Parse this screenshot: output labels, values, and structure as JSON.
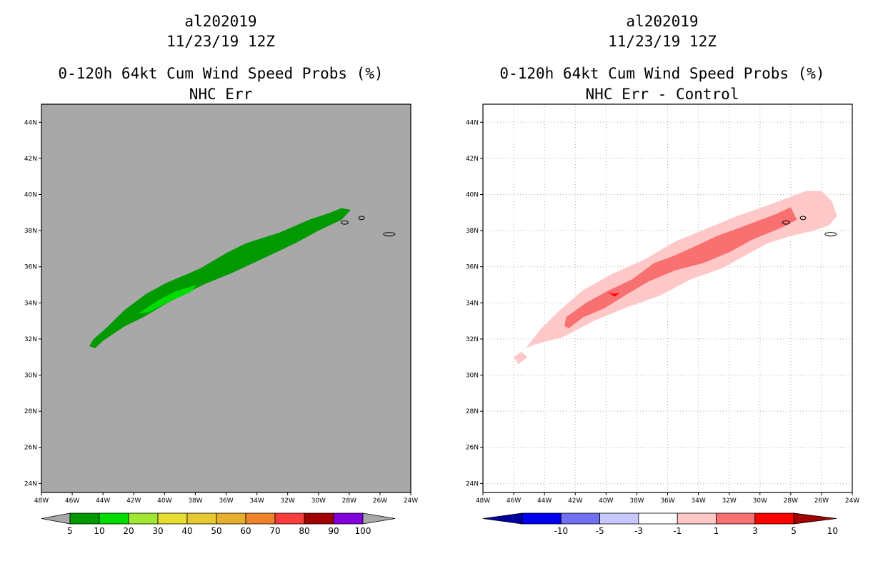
{
  "chart_data": [
    {
      "type": "map-contour",
      "storm_id": "al202019",
      "datetime": "11/23/19 12Z",
      "title": "0-120h 64kt Cum Wind Speed Probs (%)",
      "subtitle": "NHC Err",
      "lon_labels": [
        "48W",
        "46W",
        "44W",
        "42W",
        "40W",
        "38W",
        "36W",
        "34W",
        "32W",
        "30W",
        "28W",
        "26W",
        "24W"
      ],
      "lat_labels": [
        "44N",
        "42N",
        "40N",
        "38N",
        "36N",
        "34N",
        "32N",
        "30N",
        "28N",
        "26N",
        "24N"
      ],
      "lon_range": [
        -48,
        -24
      ],
      "lat_range": [
        23.5,
        45
      ],
      "gridlines": false,
      "colorbar": {
        "labels": [
          "5",
          "10",
          "20",
          "30",
          "40",
          "50",
          "60",
          "70",
          "80",
          "90",
          "100"
        ],
        "colors": [
          "#009a00",
          "#00dc00",
          "#a0e632",
          "#e6dc32",
          "#e6c832",
          "#e6af2d",
          "#f08228",
          "#fa3c3c",
          "#a00000",
          "#8200dc"
        ]
      },
      "regions": [
        {
          "level": "5-10%",
          "color": "#009a00",
          "polygon": [
            [
              -44.9,
              31.6
            ],
            [
              -44.6,
              32.0
            ],
            [
              -43.8,
              32.6
            ],
            [
              -42.6,
              33.6
            ],
            [
              -41.2,
              34.5
            ],
            [
              -39.9,
              35.1
            ],
            [
              -37.7,
              35.9
            ],
            [
              -35.9,
              36.8
            ],
            [
              -34.7,
              37.3
            ],
            [
              -32.5,
              37.9
            ],
            [
              -30.6,
              38.6
            ],
            [
              -29.2,
              39.0
            ],
            [
              -28.5,
              39.25
            ],
            [
              -27.9,
              39.15
            ],
            [
              -28.5,
              38.6
            ],
            [
              -30.0,
              38.0
            ],
            [
              -31.5,
              37.3
            ],
            [
              -33.5,
              36.5
            ],
            [
              -35.5,
              35.7
            ],
            [
              -37.5,
              35.0
            ],
            [
              -39.8,
              34.0
            ],
            [
              -41.4,
              33.2
            ],
            [
              -42.6,
              32.7
            ],
            [
              -44.0,
              31.9
            ],
            [
              -44.5,
              31.5
            ]
          ]
        },
        {
          "level": "10-20%",
          "color": "#00dc00",
          "polygon": [
            [
              -41.7,
              33.4
            ],
            [
              -40.5,
              34.1
            ],
            [
              -39.4,
              34.6
            ],
            [
              -37.9,
              35.0
            ],
            [
              -38.3,
              34.6
            ],
            [
              -39.6,
              34.1
            ],
            [
              -41.0,
              33.5
            ]
          ]
        }
      ]
    },
    {
      "type": "map-contour",
      "storm_id": "al202019",
      "datetime": "11/23/19 12Z",
      "title": "0-120h 64kt Cum Wind Speed Probs (%)",
      "subtitle": "NHC Err - Control",
      "lon_labels": [
        "48W",
        "46W",
        "44W",
        "42W",
        "40W",
        "38W",
        "36W",
        "34W",
        "32W",
        "30W",
        "28W",
        "26W",
        "24W"
      ],
      "lat_labels": [
        "44N",
        "42N",
        "40N",
        "38N",
        "36N",
        "34N",
        "32N",
        "30N",
        "28N",
        "26N",
        "24N"
      ],
      "lon_range": [
        -48,
        -24
      ],
      "lat_range": [
        23.5,
        45
      ],
      "gridlines": true,
      "colorbar": {
        "labels": [
          "-10",
          "-5",
          "-3",
          "-1",
          "1",
          "3",
          "5",
          "10"
        ],
        "colors": [
          "#0000a0",
          "#0000f0",
          "#7070f0",
          "#c8c8ff",
          "#ffffff",
          "#ffc8c8",
          "#f87070",
          "#ff0000",
          "#a00000"
        ]
      },
      "regions": [
        {
          "level": "1-3",
          "color": "#ffc8c8",
          "polygon": [
            [
              -46.0,
              31.0
            ],
            [
              -45.7,
              30.6
            ],
            [
              -45.1,
              31.0
            ],
            [
              -45.5,
              31.3
            ]
          ]
        },
        {
          "level": "1-3",
          "color": "#ffc8c8",
          "polygon": [
            [
              -45.2,
              31.5
            ],
            [
              -44.3,
              32.5
            ],
            [
              -43.0,
              33.6
            ],
            [
              -41.5,
              34.7
            ],
            [
              -39.6,
              35.6
            ],
            [
              -37.5,
              36.4
            ],
            [
              -35.5,
              37.4
            ],
            [
              -33.5,
              38.1
            ],
            [
              -31.5,
              38.8
            ],
            [
              -29.5,
              39.4
            ],
            [
              -27.0,
              40.2
            ],
            [
              -26.0,
              40.2
            ],
            [
              -25.3,
              39.6
            ],
            [
              -25.0,
              38.8
            ],
            [
              -25.5,
              38.3
            ],
            [
              -26.5,
              38.0
            ],
            [
              -28.0,
              37.7
            ],
            [
              -29.5,
              37.3
            ],
            [
              -31.0,
              36.6
            ],
            [
              -32.5,
              35.9
            ],
            [
              -34.5,
              35.3
            ],
            [
              -36.5,
              34.4
            ],
            [
              -38.5,
              33.8
            ],
            [
              -40.8,
              33.0
            ],
            [
              -42.8,
              32.1
            ],
            [
              -44.6,
              31.7
            ]
          ]
        },
        {
          "level": "3-5",
          "color": "#f87070",
          "polygon": [
            [
              -42.7,
              32.7
            ],
            [
              -42.6,
              33.2
            ],
            [
              -41.3,
              34.0
            ],
            [
              -39.8,
              34.7
            ],
            [
              -38.3,
              35.3
            ],
            [
              -36.9,
              36.2
            ],
            [
              -35.6,
              36.6
            ],
            [
              -34.3,
              37.1
            ],
            [
              -32.8,
              37.7
            ],
            [
              -31.2,
              38.2
            ],
            [
              -29.0,
              38.9
            ],
            [
              -28.0,
              39.3
            ],
            [
              -27.6,
              38.6
            ],
            [
              -28.5,
              38.2
            ],
            [
              -30.5,
              37.5
            ],
            [
              -32.0,
              36.8
            ],
            [
              -33.7,
              36.2
            ],
            [
              -35.5,
              35.8
            ],
            [
              -37.2,
              35.2
            ],
            [
              -38.6,
              34.5
            ],
            [
              -40.1,
              33.7
            ],
            [
              -41.5,
              33.2
            ],
            [
              -42.4,
              32.6
            ]
          ]
        },
        {
          "level": "5-10",
          "color": "#ff0000",
          "polygon": [
            [
              -39.9,
              34.6
            ],
            [
              -39.5,
              34.5
            ],
            [
              -39.1,
              34.55
            ],
            [
              -39.45,
              34.35
            ]
          ]
        }
      ]
    }
  ]
}
